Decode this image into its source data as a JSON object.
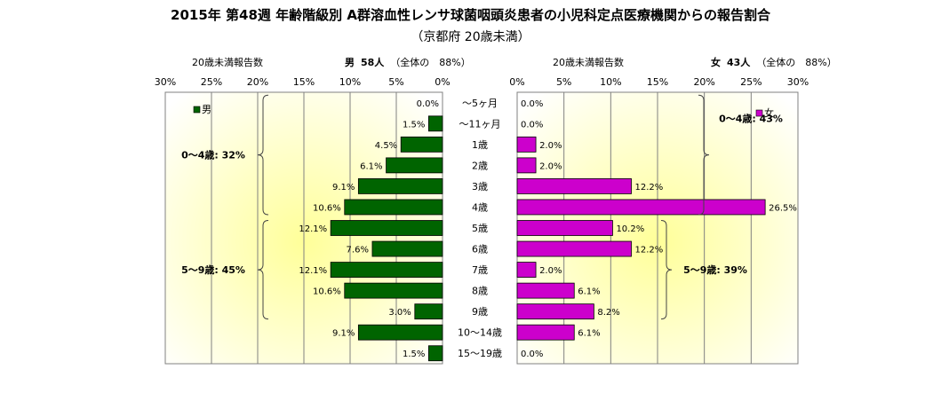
{
  "title": "2015年 第48週 年齢階級別 A群溶血性レンサ球菌咽頭炎患者の小児科定点医療機関からの報告割合",
  "subtitle": "（京都府 20歳未満）",
  "left_header": {
    "caption": "20歳未満報告数",
    "group_label": "男",
    "count": "58人",
    "share": "（全体の　88%）"
  },
  "right_header": {
    "caption": "20歳未満報告数",
    "group_label": "女",
    "count": "43人",
    "share": "（全体の　88%）"
  },
  "chart_data": {
    "type": "bar",
    "orientation": "horizontal-butterfly",
    "categories": [
      "～5ヶ月",
      "～11ヶ月",
      "1歳",
      "2歳",
      "3歳",
      "4歳",
      "5歳",
      "6歳",
      "7歳",
      "8歳",
      "9歳",
      "10～14歳",
      "15～19歳"
    ],
    "series": [
      {
        "name": "男",
        "color": "#006400",
        "values": [
          0.0,
          1.5,
          4.5,
          6.1,
          9.1,
          10.6,
          12.1,
          7.6,
          12.1,
          10.6,
          3.0,
          9.1,
          1.5
        ]
      },
      {
        "name": "女",
        "color": "#cc00cc",
        "values": [
          0.0,
          0.0,
          2.0,
          2.0,
          12.2,
          26.5,
          10.2,
          12.2,
          2.0,
          6.1,
          8.2,
          6.1,
          0.0
        ]
      }
    ],
    "xlim": [
      0,
      30
    ],
    "xticks": [
      "30%",
      "25%",
      "20%",
      "15%",
      "10%",
      "5%",
      "0%"
    ],
    "xticks_right": [
      "0%",
      "5%",
      "10%",
      "15%",
      "20%",
      "25%",
      "30%"
    ],
    "value_suffix": "%",
    "annotations_left": [
      {
        "text": "0～4歳: 32%",
        "from": 0,
        "to": 5
      },
      {
        "text": "5～9歳: 45%",
        "from": 6,
        "to": 10
      }
    ],
    "annotations_right": [
      {
        "text": "0～4歳: 43%",
        "from": 0,
        "to": 5
      },
      {
        "text": "5～9歳: 39%",
        "from": 6,
        "to": 10
      }
    ],
    "grid": true,
    "legend_left": "top-left",
    "legend_right": "top-right"
  }
}
